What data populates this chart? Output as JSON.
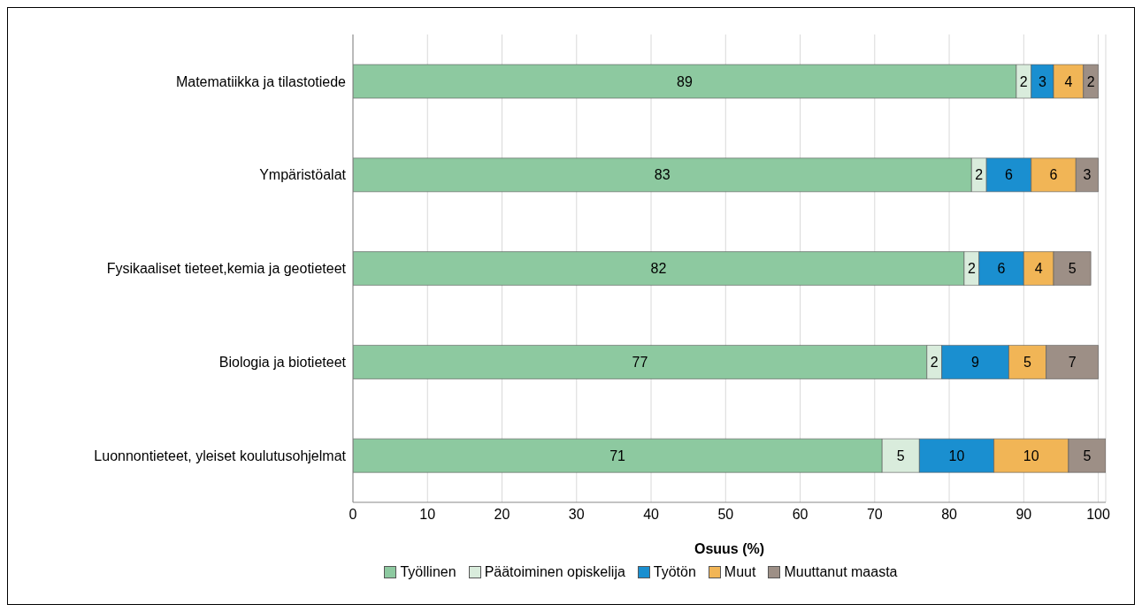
{
  "chart_data": {
    "type": "bar",
    "orientation": "horizontal",
    "stacked": true,
    "xlabel": "Osuus (%)",
    "categories": [
      "Matematiikka ja tilastotiede",
      "Ympäristöalat",
      "Fysikaaliset tieteet,kemia ja geotieteet",
      "Biologia ja biotieteet",
      "Luonnontieteet, yleiset koulutusohjelmat"
    ],
    "series": [
      {
        "name": "Työllinen",
        "color": "#8dc9a0",
        "values": [
          89,
          83,
          82,
          77,
          71
        ]
      },
      {
        "name": "Päätoiminen opiskelija",
        "color": "#d9ecdc",
        "values": [
          2,
          2,
          2,
          2,
          5
        ]
      },
      {
        "name": "Työtön",
        "color": "#1a8fd0",
        "values": [
          3,
          6,
          6,
          9,
          10
        ]
      },
      {
        "name": "Muut",
        "color": "#f1b556",
        "values": [
          4,
          6,
          4,
          5,
          10
        ]
      },
      {
        "name": "Muuttanut maasta",
        "color": "#9d8f86",
        "values": [
          2,
          3,
          5,
          7,
          5
        ]
      }
    ],
    "xlim": [
      0,
      101
    ],
    "xticks": [
      0,
      10,
      20,
      30,
      40,
      50,
      60,
      70,
      80,
      90,
      100
    ],
    "grid": "x",
    "legend": "bottom",
    "data_labels": true
  }
}
